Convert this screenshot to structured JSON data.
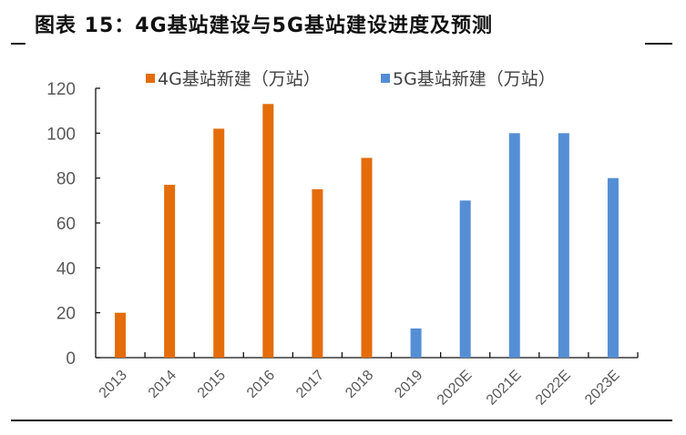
{
  "figure": {
    "title": "图表 15：4G基站建设与5G基站建设进度及预测"
  },
  "legend": {
    "items": [
      {
        "label": "4G基站新建（万站）",
        "color": "#E46C0A"
      },
      {
        "label": "5G基站新建（万站）",
        "color": "#558ED5"
      }
    ]
  },
  "chart_data": {
    "type": "bar",
    "title": "图表 15：4G基站建设与5G基站建设进度及预测",
    "xlabel": "",
    "ylabel": "",
    "ylim": [
      0,
      120
    ],
    "yticks": [
      0,
      20,
      40,
      60,
      80,
      100,
      120
    ],
    "grid": false,
    "legend_position": "top",
    "categories": [
      "2013",
      "2014",
      "2015",
      "2016",
      "2017",
      "2018",
      "2019",
      "2020E",
      "2021E",
      "2022E",
      "2023E"
    ],
    "series": [
      {
        "name": "4G基站新建（万站）",
        "color": "#E46C0A",
        "values": [
          20,
          77,
          102,
          113,
          75,
          89,
          null,
          null,
          null,
          null,
          null
        ]
      },
      {
        "name": "5G基站新建（万站）",
        "color": "#558ED5",
        "values": [
          null,
          null,
          null,
          null,
          null,
          null,
          13,
          70,
          100,
          100,
          80
        ]
      }
    ]
  }
}
